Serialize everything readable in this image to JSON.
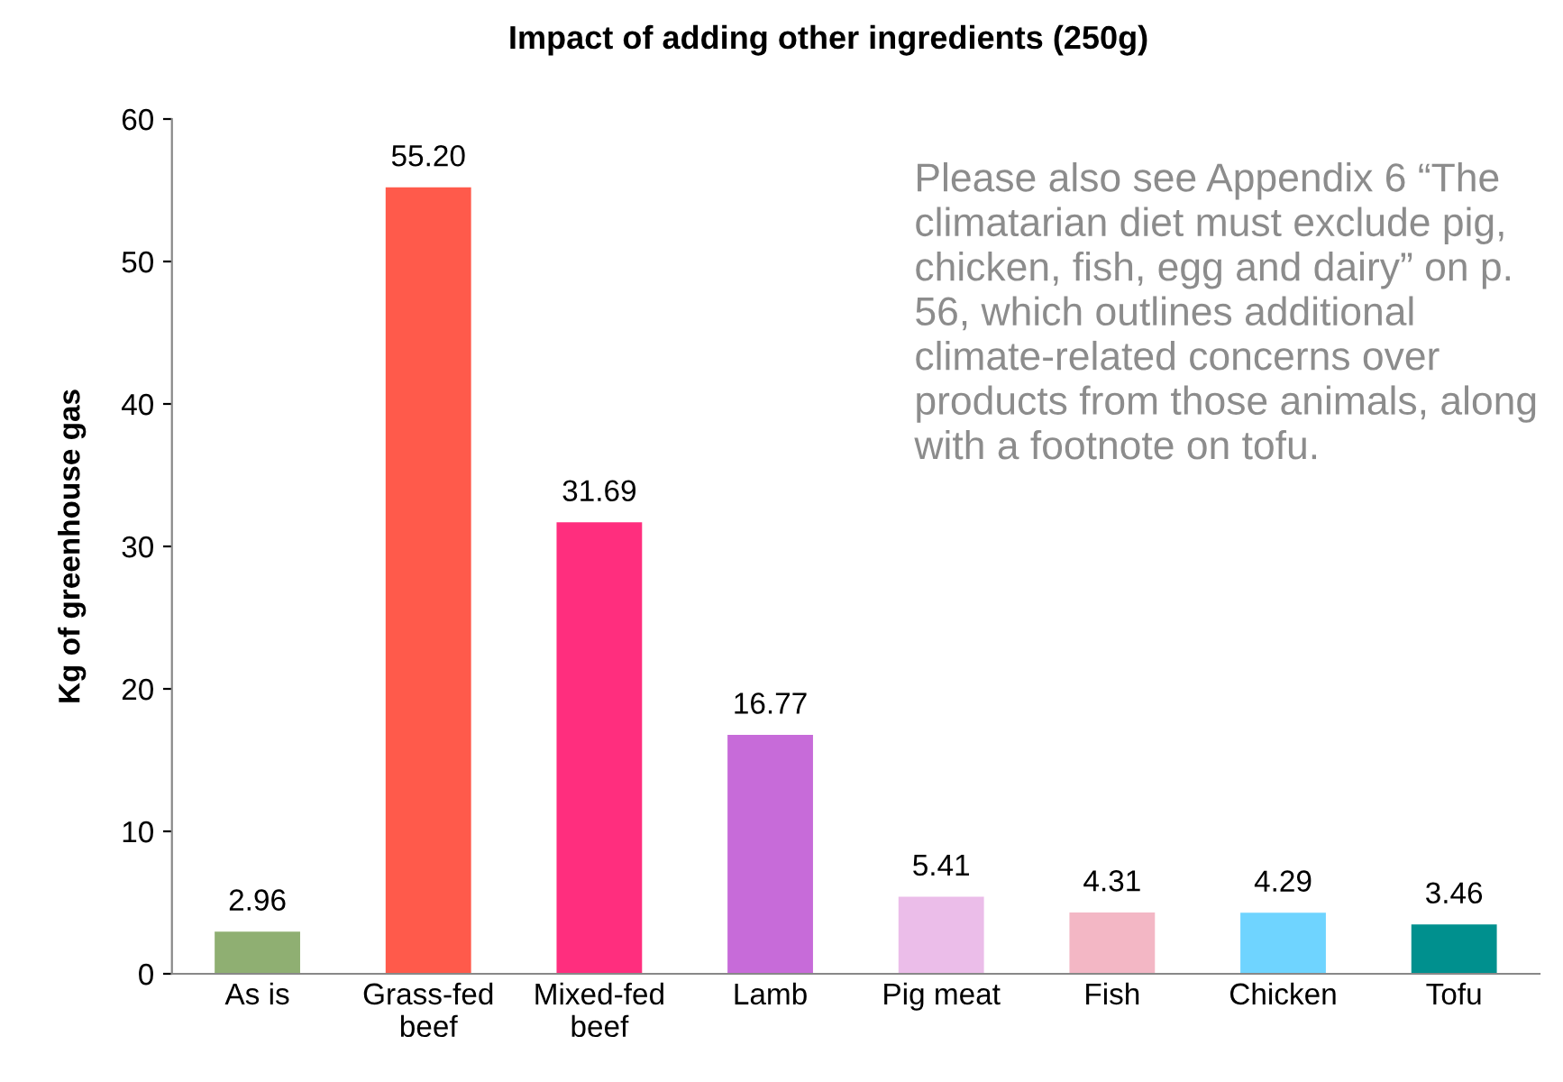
{
  "chart_data": {
    "type": "bar",
    "title": "Impact of adding other ingredients (250g)",
    "ylabel": "Kg of greenhouse gas",
    "categories": [
      "As is",
      "Grass-fed beef",
      "Mixed-fed beef",
      "Lamb",
      "Pig meat",
      "Fish",
      "Chicken",
      "Tofu"
    ],
    "values": [
      2.96,
      55.2,
      31.69,
      16.77,
      5.41,
      4.31,
      4.29,
      3.46
    ],
    "value_labels": [
      "2.96",
      "55.20",
      "31.69",
      "16.77",
      "5.41",
      "4.31",
      "4.29",
      "3.46"
    ],
    "colors": [
      "#8faf72",
      "#ff5a4b",
      "#ff2e7e",
      "#c76bd9",
      "#ebbde9",
      "#f3b7c5",
      "#6fd4ff",
      "#00908e"
    ],
    "ylim": [
      0,
      60
    ],
    "yticks": [
      0,
      10,
      20,
      30,
      40,
      50,
      60
    ],
    "grid": false,
    "legend": false,
    "annotations": [
      "Please also see Appendix 6 “The climatarian diet must exclude pig, chicken, fish, egg and dairy” on p. 56, which outlines additional climate-related concerns over products from those animals, along with a footnote on tofu."
    ]
  }
}
